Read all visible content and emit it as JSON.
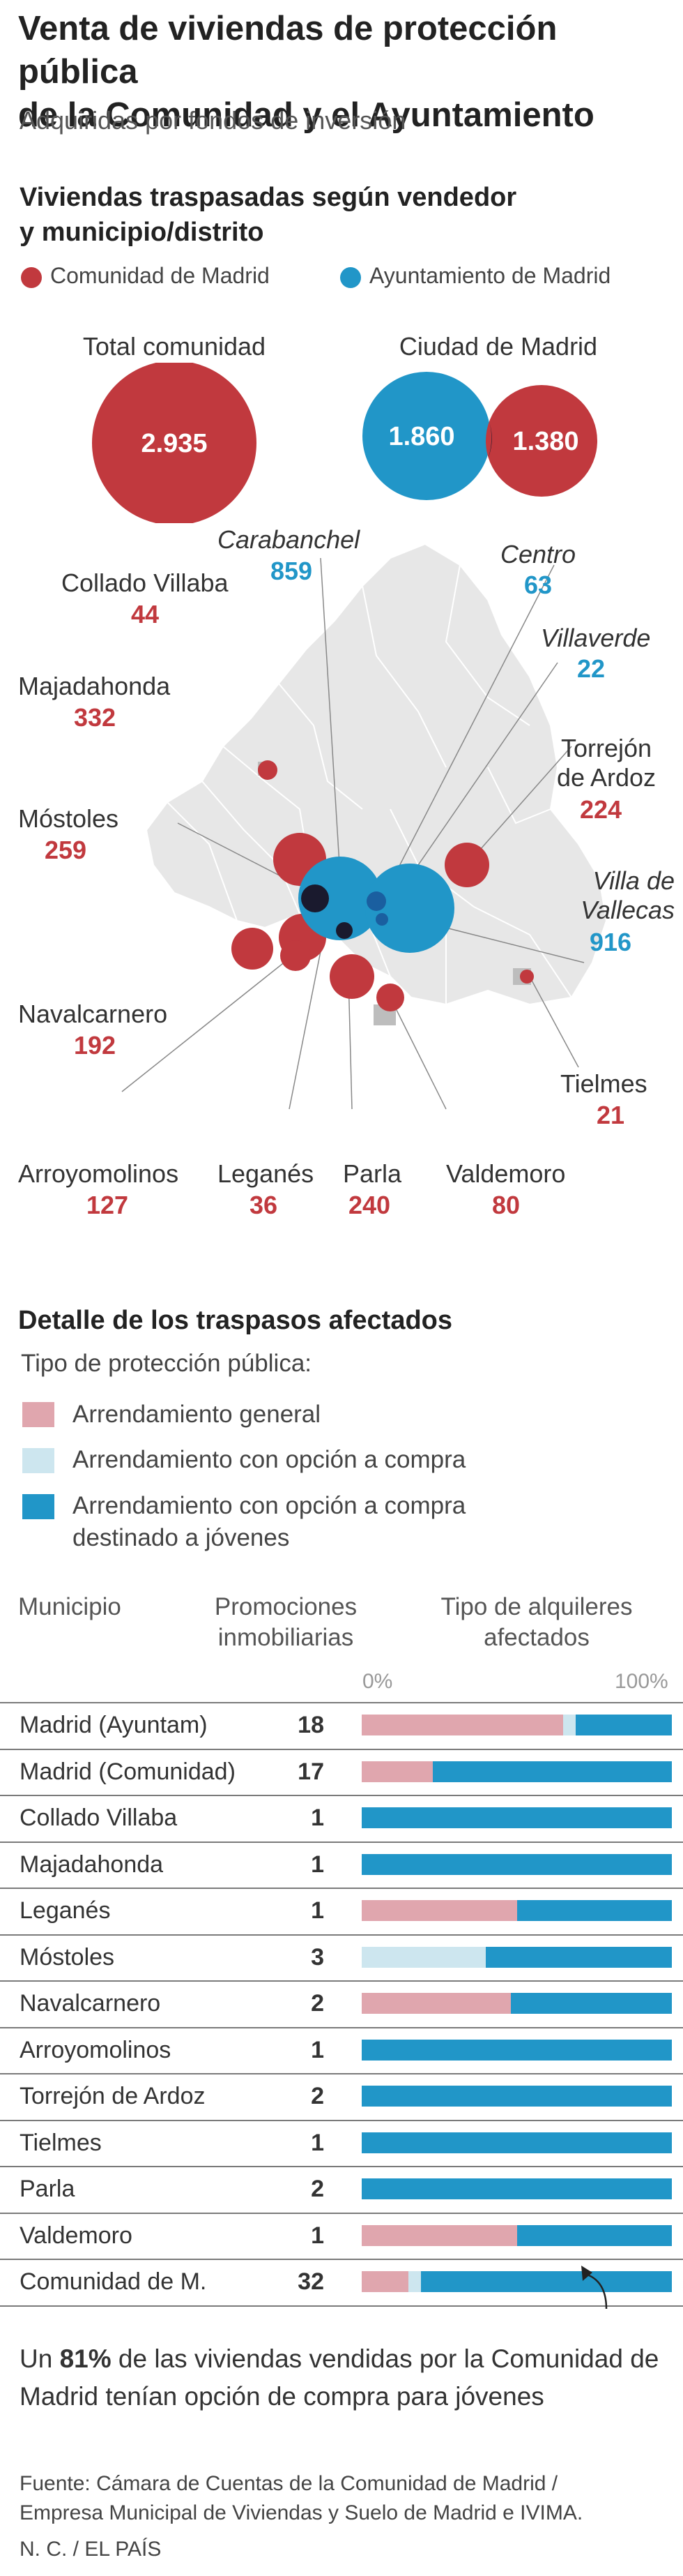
{
  "title_line1": "Venta de viviendas de protección pública",
  "title_line2": "de la Comunidad y el Ayuntamiento",
  "subtitle": "Adquiridas por fondos de inversión",
  "map_section": {
    "heading_line1": "Viviendas traspasadas según vendedor",
    "heading_line2": "y municipio/distrito",
    "legend": [
      {
        "label": "Comunidad de Madrid",
        "color": "#c1393e"
      },
      {
        "label": "Ayuntamiento de Madrid",
        "color": "#2196c8"
      }
    ],
    "totals": {
      "comunidad_label": "Total comunidad",
      "comunidad_value": "2.935",
      "ciudad_label": "Ciudad de Madrid",
      "ciudad_ayto_value": "1.860",
      "ciudad_comunidad_value": "1.380"
    },
    "places": [
      {
        "name": "Carabanchel",
        "value": "859",
        "seller": "ayuntamiento",
        "italic": true
      },
      {
        "name": "Centro",
        "value": "63",
        "seller": "ayuntamiento",
        "italic": true
      },
      {
        "name": "Villaverde",
        "value": "22",
        "seller": "ayuntamiento",
        "italic": true
      },
      {
        "name": "Villa de Vallecas",
        "value": "916",
        "seller": "ayuntamiento",
        "italic": true
      },
      {
        "name": "Collado Villaba",
        "value": "44",
        "seller": "comunidad"
      },
      {
        "name": "Majadahonda",
        "value": "332",
        "seller": "comunidad"
      },
      {
        "name": "Móstoles",
        "value": "259",
        "seller": "comunidad"
      },
      {
        "name": "Navalcarnero",
        "value": "192",
        "seller": "comunidad"
      },
      {
        "name": "Torrejón de Ardoz",
        "value": "224",
        "seller": "comunidad"
      },
      {
        "name": "Tielmes",
        "value": "21",
        "seller": "comunidad"
      },
      {
        "name": "Arroyomolinos",
        "value": "127",
        "seller": "comunidad"
      },
      {
        "name": "Leganés",
        "value": "36",
        "seller": "comunidad"
      },
      {
        "name": "Parla",
        "value": "240",
        "seller": "comunidad"
      },
      {
        "name": "Valdemoro",
        "value": "80",
        "seller": "comunidad"
      }
    ]
  },
  "detail_section": {
    "heading": "Detalle de los traspasos afectados",
    "types_label": "Tipo de protección pública:",
    "types": [
      {
        "label": "Arrendamiento general",
        "color": "#e0a6ae"
      },
      {
        "label": "Arrendamiento con opción a compra",
        "color": "#cde6ef"
      },
      {
        "label_line1": "Arrendamiento con opción a compra",
        "label_line2": "destinado a jóvenes",
        "color": "#2196c8"
      }
    ],
    "col_municipio": "Municipio",
    "col_promociones_line1": "Promociones",
    "col_promociones_line2": "inmobiliarias",
    "col_tipo_line1": "Tipo de alquileres",
    "col_tipo_line2": "afectados",
    "axis_min_label": "0%",
    "axis_max_label": "100%"
  },
  "chart_data": {
    "type": "bar",
    "stacked": true,
    "orientation": "horizontal",
    "categories": [
      "Madrid (Ayuntam)",
      "Madrid (Comunidad)",
      "Collado Villaba",
      "Majadahonda",
      "Leganés",
      "Móstoles",
      "Navalcarnero",
      "Arroyomolinos",
      "Torrejón de Ardoz",
      "Tielmes",
      "Parla",
      "Valdemoro",
      "Comunidad de M."
    ],
    "promociones": [
      18,
      17,
      1,
      1,
      1,
      3,
      2,
      1,
      2,
      1,
      2,
      1,
      32
    ],
    "series": [
      {
        "name": "Arrendamiento general",
        "color": "#e0a6ae",
        "values": [
          65,
          23,
          0,
          0,
          50,
          0,
          48,
          0,
          0,
          0,
          0,
          50,
          15
        ]
      },
      {
        "name": "Arrendamiento con opción a compra",
        "color": "#cde6ef",
        "values": [
          4,
          0,
          0,
          0,
          0,
          40,
          0,
          0,
          0,
          0,
          0,
          0,
          4
        ]
      },
      {
        "name": "Arrendamiento con opción a compra destinado a jóvenes",
        "color": "#2196c8",
        "values": [
          31,
          77,
          100,
          100,
          50,
          60,
          52,
          100,
          100,
          100,
          100,
          50,
          81
        ]
      }
    ],
    "xlim": [
      0,
      100
    ]
  },
  "note_prefix": "Un ",
  "note_highlight": "81%",
  "note_rest": " de las viviendas vendidas por la Comunidad de Madrid tenían opción de compra para jóvenes",
  "source_line1": "Fuente: Cámara de Cuentas de la Comunidad de Madrid /",
  "source_line2": "Empresa Municipal de Viviendas y Suelo de Madrid e IVIMA.",
  "credit": "N. C. / EL PAÍS"
}
